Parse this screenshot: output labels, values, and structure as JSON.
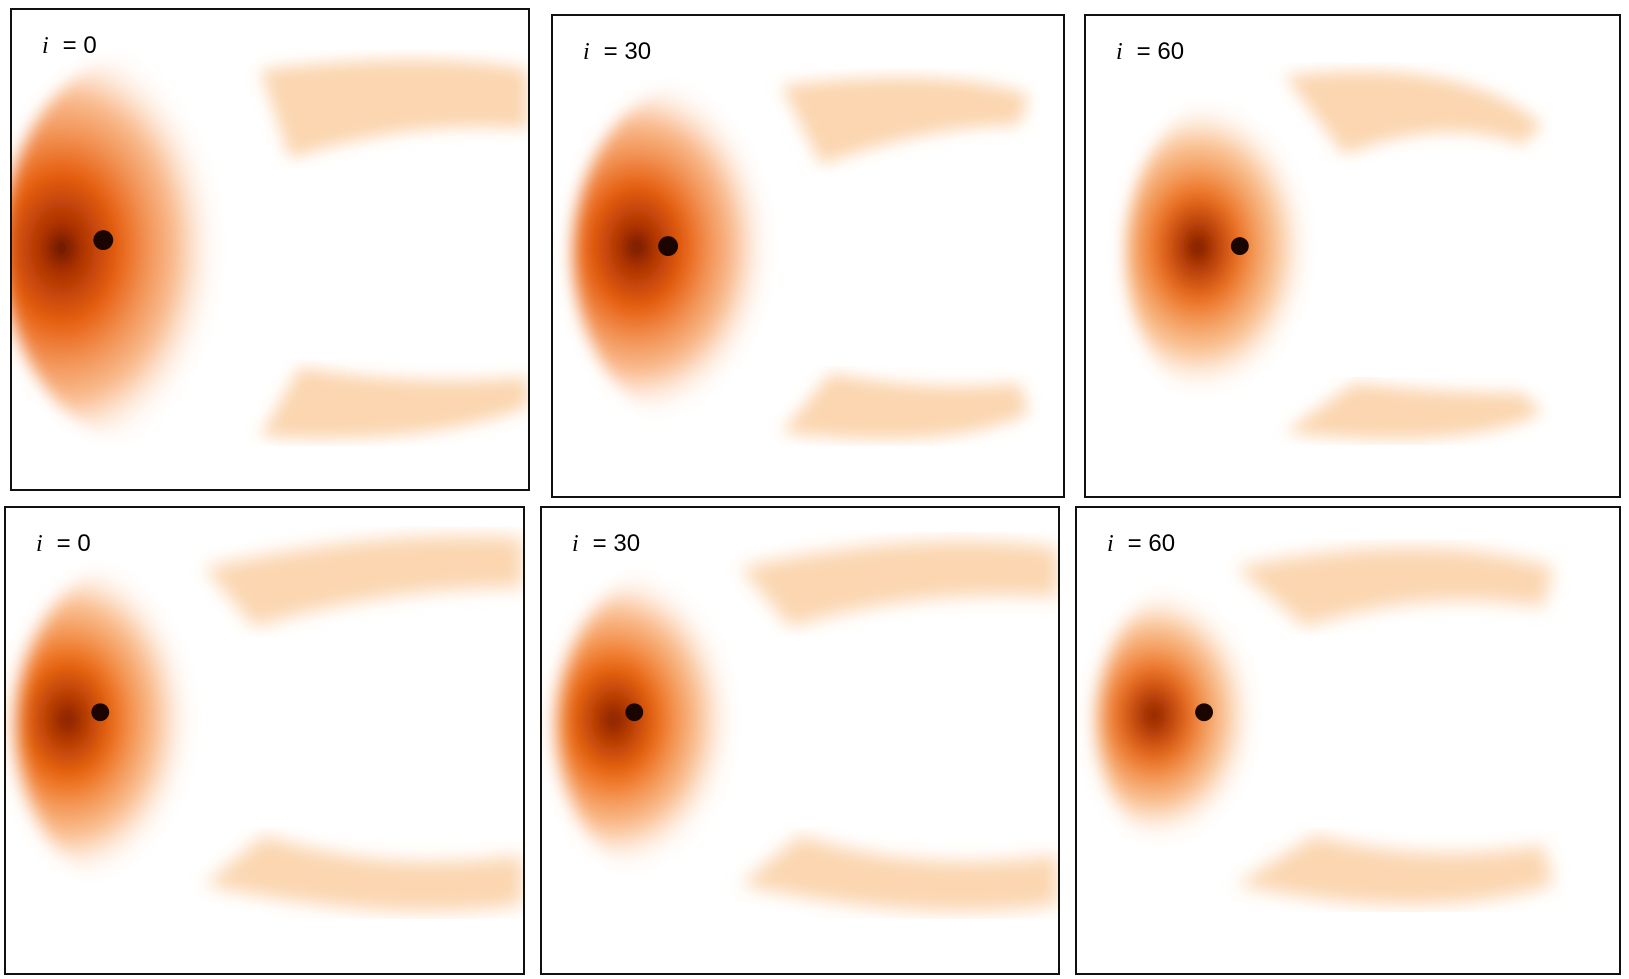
{
  "panels": [
    {
      "variable": "i",
      "value": "= 0",
      "row": "top"
    },
    {
      "variable": "i",
      "value": "= 30",
      "row": "top"
    },
    {
      "variable": "i",
      "value": "= 60",
      "row": "top"
    },
    {
      "variable": "i",
      "value": "= 0",
      "row": "bottom"
    },
    {
      "variable": "i",
      "value": "= 30",
      "row": "bottom"
    },
    {
      "variable": "i",
      "value": "= 60",
      "row": "bottom"
    }
  ],
  "colors": {
    "core": "#1a0500",
    "dense": "#8a2200",
    "mid": "#e86010",
    "faint": "#fbd6b0",
    "background": "#ffffff"
  }
}
